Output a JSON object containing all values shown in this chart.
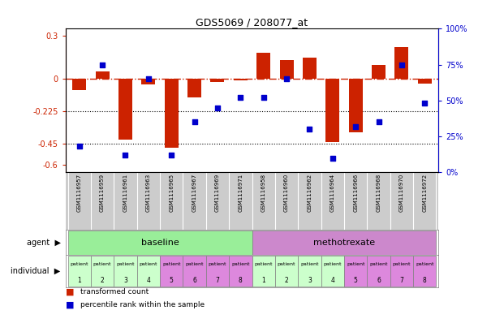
{
  "title": "GDS5069 / 208077_at",
  "samples": [
    "GSM1116957",
    "GSM1116959",
    "GSM1116961",
    "GSM1116963",
    "GSM1116965",
    "GSM1116967",
    "GSM1116969",
    "GSM1116971",
    "GSM1116958",
    "GSM1116960",
    "GSM1116962",
    "GSM1116964",
    "GSM1116966",
    "GSM1116968",
    "GSM1116970",
    "GSM1116972"
  ],
  "bar_values": [
    -0.08,
    0.05,
    -0.42,
    -0.04,
    -0.48,
    -0.13,
    -0.02,
    -0.01,
    0.18,
    0.13,
    0.15,
    -0.44,
    -0.37,
    0.1,
    0.22,
    -0.03
  ],
  "dot_values": [
    18,
    75,
    12,
    65,
    12,
    35,
    45,
    52,
    52,
    65,
    30,
    10,
    32,
    35,
    75,
    48
  ],
  "baseline_group": [
    0,
    1,
    2,
    3,
    4,
    5,
    6,
    7
  ],
  "methotrexate_group": [
    8,
    9,
    10,
    11,
    12,
    13,
    14,
    15
  ],
  "bar_color": "#cc2200",
  "dot_color": "#0000cc",
  "hline_y": 0.0,
  "dotted_lines": [
    -0.225,
    -0.45
  ],
  "ylim_left": [
    -0.65,
    0.35
  ],
  "ylim_right": [
    0,
    100
  ],
  "right_yticks": [
    0,
    25,
    50,
    75,
    100
  ],
  "right_yticklabels": [
    "0%",
    "25%",
    "50%",
    "75%",
    "100%"
  ],
  "background_color": "#ffffff",
  "gray_bg": "#cccccc",
  "baseline_box_color": "#99ee99",
  "methotrexate_box_color": "#cc88cc",
  "indiv_colors_b": [
    "#ccffcc",
    "#ccffcc",
    "#ccffcc",
    "#ccffcc",
    "#dd88dd",
    "#dd88dd",
    "#dd88dd",
    "#dd88dd"
  ],
  "indiv_colors_m": [
    "#ccffcc",
    "#ccffcc",
    "#ccffcc",
    "#ccffcc",
    "#dd88dd",
    "#dd88dd",
    "#dd88dd",
    "#dd88dd"
  ],
  "patient_nums": [
    1,
    2,
    3,
    4,
    5,
    6,
    7,
    8,
    1,
    2,
    3,
    4,
    5,
    6,
    7,
    8
  ],
  "left_yticks": [
    -0.6,
    -0.45,
    -0.225,
    0.0,
    0.3
  ],
  "left_yticklabels": [
    "-0.6",
    "-0.45",
    "-0.225",
    "0",
    "0.3"
  ]
}
